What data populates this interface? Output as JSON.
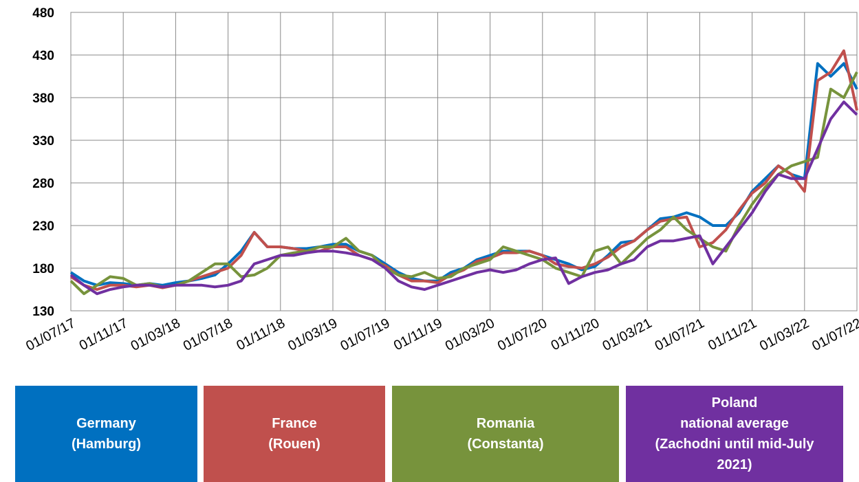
{
  "chart_data": {
    "type": "line",
    "x": [
      "01/07/17",
      "01/08/17",
      "01/09/17",
      "01/10/17",
      "01/11/17",
      "01/12/17",
      "01/01/18",
      "01/02/18",
      "01/03/18",
      "01/04/18",
      "01/05/18",
      "01/06/18",
      "01/07/18",
      "01/08/18",
      "01/09/18",
      "01/10/18",
      "01/11/18",
      "01/12/18",
      "01/01/19",
      "01/02/19",
      "01/03/19",
      "01/04/19",
      "01/05/19",
      "01/06/19",
      "01/07/19",
      "01/08/19",
      "01/09/19",
      "01/10/19",
      "01/11/19",
      "01/12/19",
      "01/01/20",
      "01/02/20",
      "01/03/20",
      "01/04/20",
      "01/05/20",
      "01/06/20",
      "01/07/20",
      "01/08/20",
      "01/09/20",
      "01/10/20",
      "01/11/20",
      "01/12/20",
      "01/01/21",
      "01/02/21",
      "01/03/21",
      "01/04/21",
      "01/05/21",
      "01/06/21",
      "01/07/21",
      "01/08/21",
      "01/09/21",
      "01/10/21",
      "01/11/21",
      "01/12/21",
      "01/01/22",
      "01/02/22",
      "01/03/22",
      "01/04/22",
      "01/05/22",
      "01/06/22",
      "01/07/22"
    ],
    "series": [
      {
        "name": "Germany\n(Hamburg)",
        "color": "#0070c0",
        "values": [
          175,
          165,
          160,
          163,
          162,
          160,
          162,
          160,
          163,
          165,
          168,
          172,
          185,
          200,
          222,
          205,
          205,
          203,
          203,
          205,
          208,
          208,
          200,
          195,
          185,
          175,
          168,
          165,
          165,
          175,
          180,
          190,
          195,
          200,
          200,
          200,
          195,
          190,
          185,
          178,
          182,
          195,
          210,
          212,
          225,
          238,
          240,
          245,
          240,
          230,
          230,
          245,
          270,
          285,
          300,
          290,
          285,
          420,
          405,
          420,
          390
        ]
      },
      {
        "name": "France\n(Rouen)",
        "color": "#c0504d",
        "values": [
          170,
          160,
          155,
          160,
          160,
          158,
          160,
          157,
          160,
          165,
          170,
          175,
          180,
          195,
          222,
          205,
          205,
          203,
          200,
          200,
          205,
          205,
          195,
          190,
          183,
          172,
          165,
          165,
          163,
          172,
          178,
          188,
          192,
          198,
          198,
          200,
          195,
          185,
          182,
          180,
          185,
          193,
          205,
          212,
          225,
          235,
          238,
          240,
          205,
          210,
          225,
          248,
          268,
          280,
          300,
          290,
          270,
          400,
          410,
          435,
          365
        ]
      },
      {
        "name": "Romania\n(Constanta)",
        "color": "#77933c",
        "values": [
          165,
          150,
          160,
          170,
          168,
          160,
          162,
          158,
          160,
          165,
          175,
          185,
          185,
          170,
          172,
          180,
          195,
          198,
          200,
          205,
          205,
          215,
          200,
          195,
          180,
          172,
          170,
          175,
          168,
          170,
          180,
          185,
          190,
          205,
          200,
          195,
          190,
          180,
          175,
          170,
          200,
          205,
          185,
          200,
          215,
          225,
          240,
          225,
          215,
          205,
          200,
          230,
          255,
          275,
          290,
          300,
          305,
          310,
          390,
          380,
          410
        ]
      },
      {
        "name": "Poland\nnational average\n(Zachodni until mid-July\n2021)",
        "color": "#7030a0",
        "values": [
          172,
          160,
          150,
          155,
          158,
          160,
          160,
          158,
          160,
          160,
          160,
          158,
          160,
          165,
          185,
          190,
          195,
          195,
          198,
          200,
          200,
          198,
          195,
          190,
          180,
          165,
          158,
          155,
          160,
          165,
          170,
          175,
          178,
          175,
          178,
          185,
          190,
          192,
          162,
          170,
          175,
          178,
          185,
          190,
          205,
          212,
          212,
          215,
          218,
          185,
          205,
          225,
          245,
          270,
          290,
          285,
          285,
          320,
          355,
          375,
          360
        ]
      }
    ],
    "xlim": [
      "01/07/17",
      "01/07/22"
    ],
    "xticks": [
      "01/07/17",
      "01/11/17",
      "01/03/18",
      "01/07/18",
      "01/11/18",
      "01/03/19",
      "01/07/19",
      "01/11/19",
      "01/03/20",
      "01/07/20",
      "01/11/20",
      "01/03/21",
      "01/07/21",
      "01/11/21",
      "01/03/22",
      "01/07/22"
    ],
    "ylim": [
      130,
      480
    ],
    "yticks": [
      130,
      180,
      230,
      280,
      330,
      380,
      430,
      480
    ],
    "grid": true
  }
}
